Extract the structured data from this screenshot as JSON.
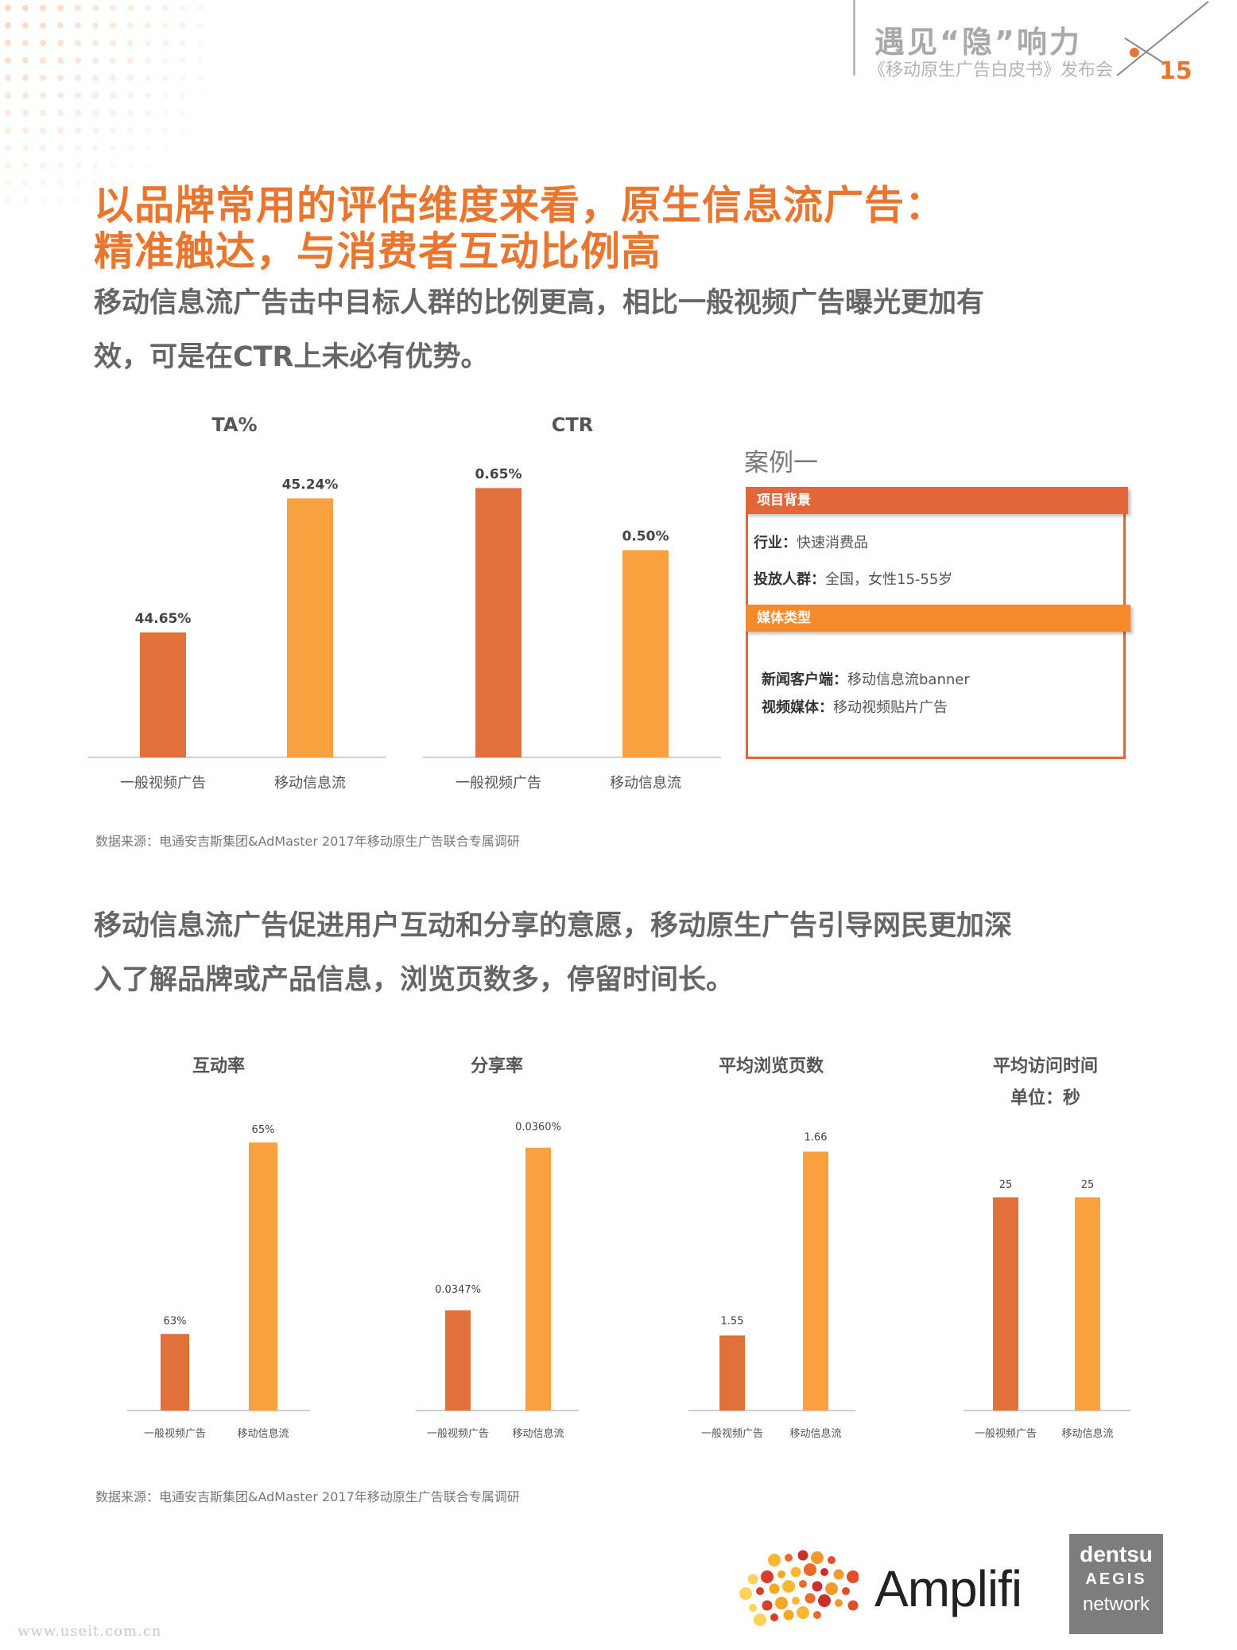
{
  "header": {
    "title": "遇见“隐”响力",
    "subtitle": "《移动原生广告白皮书》发布会",
    "page_number": "15"
  },
  "headline": {
    "line1": "以品牌常用的评估维度来看，原生信息流广告：",
    "line2": "精准触达，与消费者互动比例高"
  },
  "section1": {
    "line1": "移动信息流广告击中目标人群的比例更高，相比一般视频广告曝光更加有",
    "line2": "效，可是在CTR上未必有优势。"
  },
  "section2": {
    "line1": "移动信息流广告促进用户互动和分享的意愿，移动原生广告引导网民更加深",
    "line2": "入了解品牌或产品信息，浏览页数多，停留时间长。"
  },
  "source1": "数据来源：电通安吉斯集团&AdMaster 2017年移动原生广告联合专属调研",
  "source2": "数据来源：电通安吉斯集团&AdMaster 2017年移动原生广告联合专属调研",
  "case": {
    "title": "案例一",
    "section1": "项目背景",
    "industry_label": "行业：",
    "industry_value": "快速消费品",
    "audience_label": "投放人群：",
    "audience_value": "全国，女性15-55岁",
    "section2": "媒体类型",
    "news_label": "新闻客户端：",
    "news_value": "移动信息流banner",
    "video_label": "视频媒体：",
    "video_value": "移动视频贴片广告"
  },
  "colors": {
    "accent": "#e8762f",
    "bar_dark": "#e2703a",
    "bar_light": "#f9a03f",
    "text": "#555555"
  },
  "logos": {
    "amplifi": "Amplifi",
    "dentsu_line1": "dentsu",
    "dentsu_line2": "AEGIS",
    "dentsu_line3": "network",
    "watermark": "www.useit.com.cn"
  },
  "chart_data": [
    {
      "id": "ta",
      "type": "bar",
      "title": "TA%",
      "categories": [
        "一般视频广告",
        "移动信息流"
      ],
      "values": [
        44.65,
        45.24
      ],
      "labels": [
        "44.65%",
        "45.24%"
      ],
      "ylim": [
        44.1,
        45.35
      ]
    },
    {
      "id": "ctr",
      "type": "bar",
      "title": "CTR",
      "categories": [
        "一般视频广告",
        "移动信息流"
      ],
      "values": [
        0.65,
        0.5
      ],
      "labels": [
        "0.65%",
        "0.50%"
      ],
      "ylim": [
        0,
        0.67
      ]
    },
    {
      "id": "interact",
      "type": "bar",
      "title": "互动率",
      "categories": [
        "一般视频广告",
        "移动信息流"
      ],
      "values": [
        63,
        65
      ],
      "labels": [
        "63%",
        "65%"
      ],
      "ylim": [
        62.2,
        65.3
      ]
    },
    {
      "id": "share",
      "type": "bar",
      "title": "分享率",
      "categories": [
        "一般视频广告",
        "移动信息流"
      ],
      "values": [
        0.0347,
        0.036
      ],
      "labels": [
        "0.0347%",
        "0.0360%"
      ],
      "ylim": [
        0.0339,
        0.03617
      ]
    },
    {
      "id": "pages",
      "type": "bar",
      "title": "平均浏览页数",
      "categories": [
        "一般视频广告",
        "移动信息流"
      ],
      "values": [
        1.55,
        1.66
      ],
      "labels": [
        "1.55",
        "1.66"
      ],
      "ylim": [
        1.505,
        1.675
      ]
    },
    {
      "id": "time",
      "type": "bar",
      "title": "平均访问时间",
      "subtitle": "单位：秒",
      "categories": [
        "一般视频广告",
        "移动信息流"
      ],
      "values": [
        25,
        25
      ],
      "labels": [
        "25",
        "25"
      ],
      "ylim": [
        0,
        28
      ]
    }
  ]
}
